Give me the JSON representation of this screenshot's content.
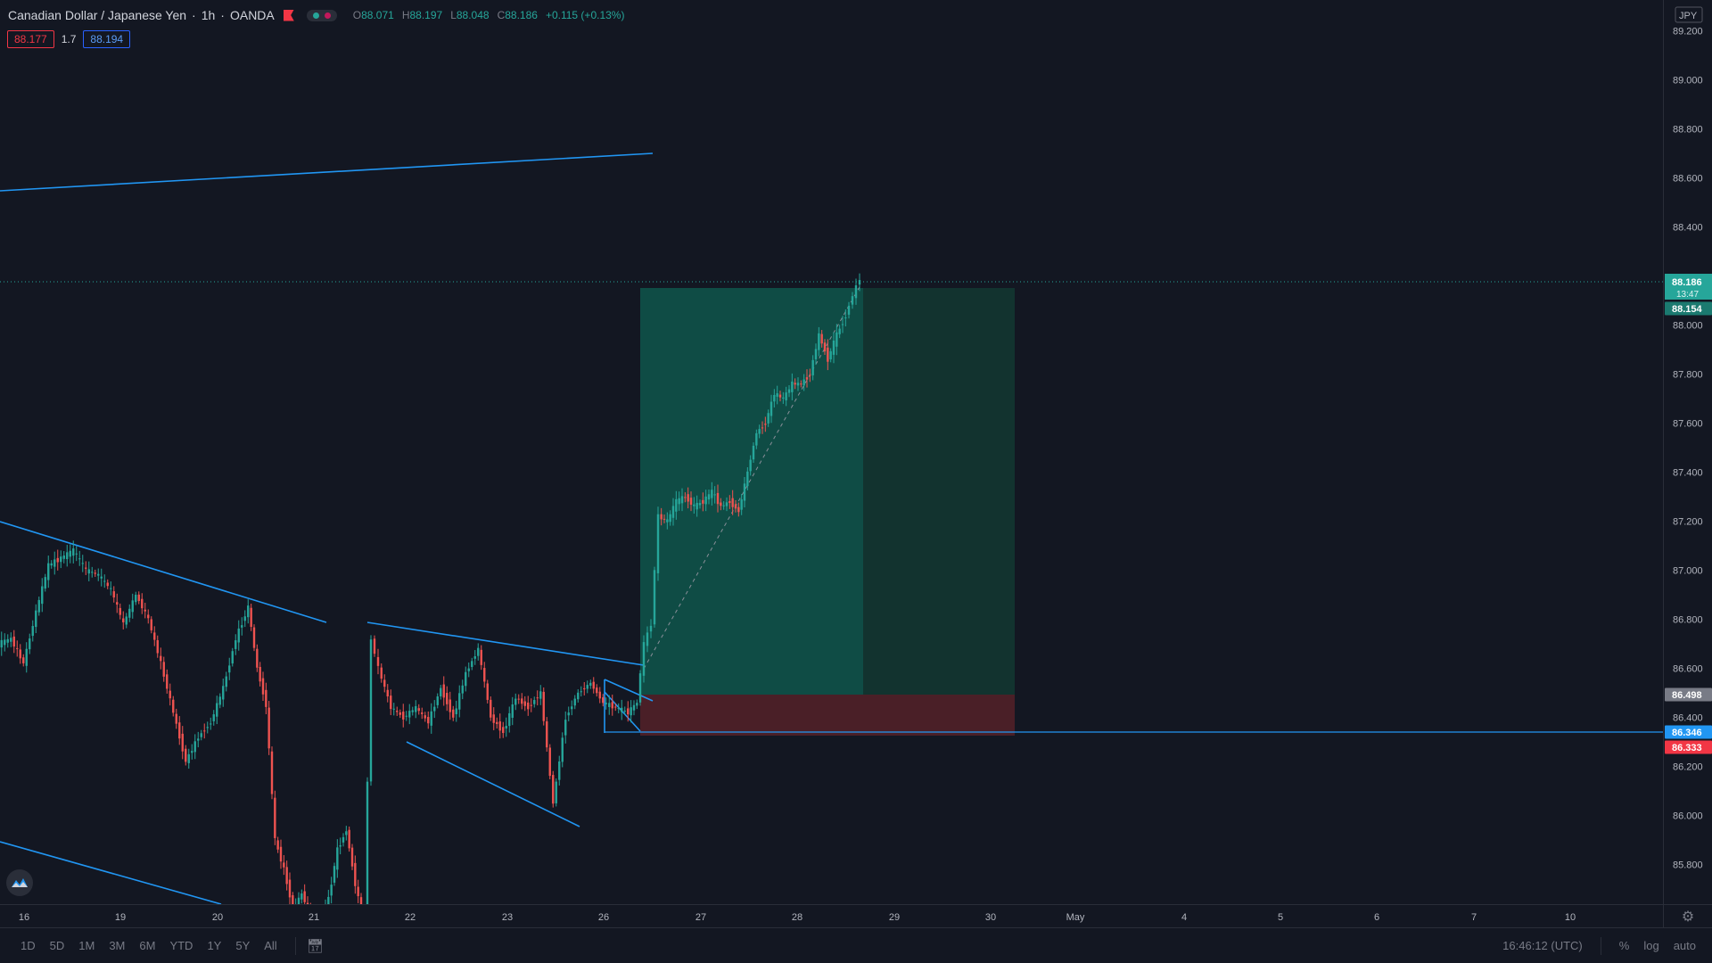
{
  "legend": {
    "symbol": "Canadian Dollar / Japanese Yen",
    "interval": "1h",
    "exchange": "OANDA",
    "ohlc": [
      {
        "k": "O",
        "v": "88.071"
      },
      {
        "k": "H",
        "v": "88.197"
      },
      {
        "k": "L",
        "v": "88.048"
      },
      {
        "k": "C",
        "v": "88.186"
      }
    ],
    "change": "+0.115 (+0.13%)"
  },
  "quote": {
    "sell": "88.177",
    "spread": "1.7",
    "buy": "88.194"
  },
  "price_axis": {
    "currency": "JPY",
    "ticks": [
      "89.200",
      "89.000",
      "88.800",
      "88.600",
      "88.400",
      "88.000",
      "87.800",
      "87.600",
      "87.400",
      "87.200",
      "87.000",
      "86.800",
      "86.600",
      "86.400",
      "86.200",
      "86.000",
      "85.800"
    ],
    "tick_values": [
      89.2,
      89.0,
      88.8,
      88.6,
      88.4,
      88.0,
      87.8,
      87.6,
      87.4,
      87.2,
      87.0,
      86.8,
      86.6,
      86.4,
      86.2,
      86.0,
      85.8
    ],
    "price_label": "88.186",
    "countdown": "13:47",
    "tp_label": "88.154",
    "entry_label": "86.498",
    "line_label": "86.346",
    "stop_label": "86.333",
    "colors": {
      "bull": "#26a69a",
      "bear": "#ef5350",
      "line": "#2196f3",
      "entry": "#787b86"
    }
  },
  "time_axis": [
    "16",
    "19",
    "20",
    "21",
    "22",
    "23",
    "26",
    "27",
    "28",
    "29",
    "30",
    "May",
    "4",
    "5",
    "6",
    "7",
    "10"
  ],
  "toolbar": {
    "timeframes": [
      "1D",
      "5D",
      "1M",
      "3M",
      "6M",
      "YTD",
      "1Y",
      "5Y",
      "All"
    ],
    "clock": "16:46:12 (UTC)",
    "percent": "%",
    "log": "log",
    "auto": "auto"
  }
}
